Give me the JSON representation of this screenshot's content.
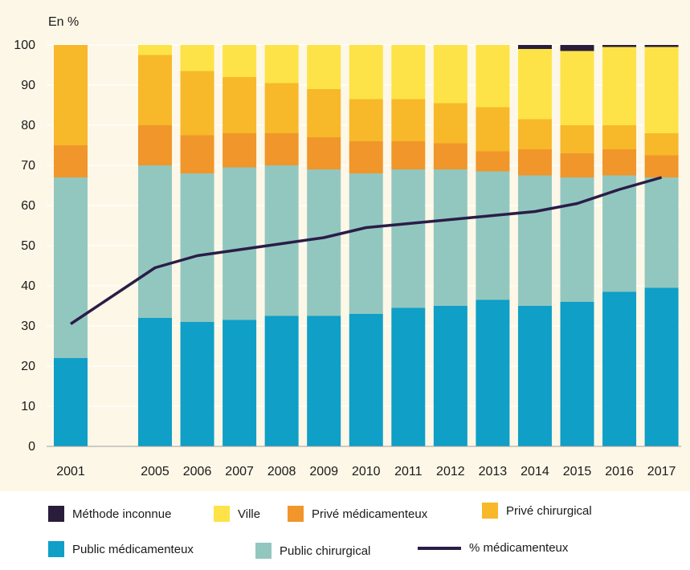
{
  "chart_data": {
    "type": "bar",
    "stacked": true,
    "ylabel": "En %",
    "ylim": [
      0,
      100
    ],
    "yticks": [
      0,
      10,
      20,
      30,
      40,
      50,
      60,
      70,
      80,
      90,
      100
    ],
    "grid": true,
    "categories": [
      "2001",
      "2005",
      "2006",
      "2007",
      "2008",
      "2009",
      "2010",
      "2011",
      "2012",
      "2013",
      "2014",
      "2015",
      "2016",
      "2017"
    ],
    "series": [
      {
        "name": "Public médicamenteux",
        "color": "#0f9fc7",
        "values": [
          22,
          32,
          31,
          31.5,
          32.5,
          32.5,
          33,
          34.5,
          35,
          36.5,
          35,
          36,
          38.5,
          39.5
        ]
      },
      {
        "name": "Public chirurgical",
        "color": "#92c7c0",
        "values": [
          45,
          38,
          37,
          38,
          37.5,
          36.5,
          35,
          34.5,
          34,
          32,
          32.5,
          31,
          29,
          27.5
        ]
      },
      {
        "name": "Privé médicamenteux",
        "color": "#f0962a",
        "values": [
          8,
          10,
          9.5,
          8.5,
          8,
          8,
          8,
          7,
          6.5,
          5,
          6.5,
          6,
          6.5,
          5.5
        ]
      },
      {
        "name": "Privé  chirurgical",
        "color": "#f7b82a",
        "values": [
          25,
          17.5,
          16,
          14,
          12.5,
          12,
          10.5,
          10.5,
          10,
          11,
          7.5,
          7,
          6,
          5.5
        ]
      },
      {
        "name": "Ville",
        "color": "#fde347",
        "values": [
          0,
          2.5,
          6.5,
          8,
          9.5,
          11,
          13.5,
          13.5,
          14.5,
          15.5,
          17.5,
          18.5,
          19.5,
          21.5
        ]
      },
      {
        "name": "Méthode inconnue",
        "color": "#2a1d3b",
        "values": [
          0,
          0,
          0,
          0,
          0,
          0,
          0,
          0,
          0,
          0,
          1,
          1.5,
          0.5,
          0.5
        ]
      }
    ],
    "lines": [
      {
        "name": "% médicamenteux",
        "color": "#2a1d47",
        "values": [
          30.5,
          44.5,
          47.5,
          49,
          50.5,
          52,
          54.5,
          55.5,
          56.5,
          57.5,
          58.5,
          60.5,
          64,
          67
        ]
      }
    ]
  },
  "legend": {
    "row1": [
      {
        "label": "Méthode inconnue",
        "color": "#2a1d3b",
        "kind": "box"
      },
      {
        "label": "Ville",
        "color": "#fde347",
        "kind": "box"
      },
      {
        "label": "Privé médicamenteux",
        "color": "#f0962a",
        "kind": "box"
      },
      {
        "label": "Privé  chirurgical",
        "color": "#f7b82a",
        "kind": "box"
      }
    ],
    "row2": [
      {
        "label": "Public médicamenteux",
        "color": "#0f9fc7",
        "kind": "box"
      },
      {
        "label": "Public chirurgical",
        "color": "#92c7c0",
        "kind": "box"
      },
      {
        "label": "% médicamenteux",
        "color": "#2a1d47",
        "kind": "line"
      }
    ]
  }
}
